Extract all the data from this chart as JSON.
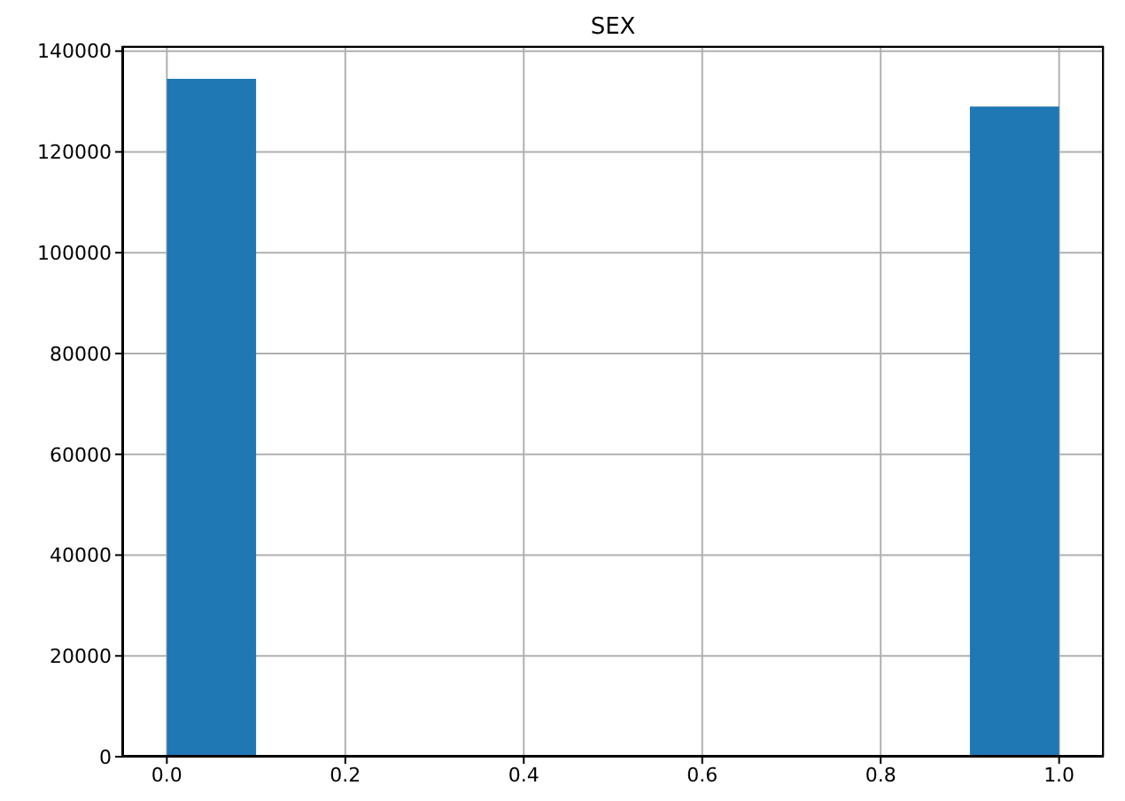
{
  "chart_data": {
    "type": "histogram",
    "title": "SEX",
    "bins": [
      0,
      0.1,
      0.2,
      0.3,
      0.4,
      0.5,
      0.6,
      0.7,
      0.8,
      0.9,
      1.0
    ],
    "values": [
      134500,
      0,
      0,
      0,
      0,
      0,
      0,
      0,
      0,
      129000
    ],
    "color": "#1f77b4",
    "xlim": [
      -0.05,
      1.05
    ],
    "xticks": [
      {
        "value": 0,
        "label": "0.0"
      },
      {
        "value": 0.2,
        "label": "0.2"
      },
      {
        "value": 0.4,
        "label": "0.4"
      },
      {
        "value": 0.6,
        "label": "0.6"
      },
      {
        "value": 0.8,
        "label": "0.8"
      },
      {
        "value": 1,
        "label": "1.0"
      }
    ],
    "ylim": [
      0,
      141000
    ],
    "yticks": [
      0,
      20000,
      40000,
      60000,
      80000,
      100000,
      120000,
      140000
    ],
    "grid": true
  }
}
